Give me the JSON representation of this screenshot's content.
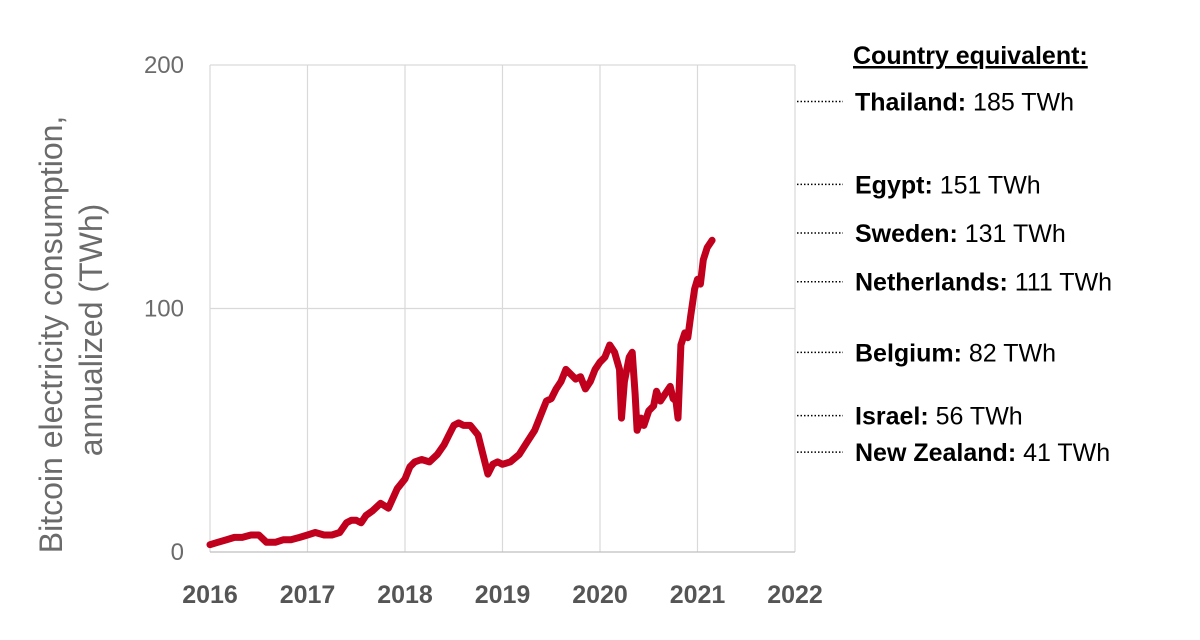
{
  "chart_data": {
    "type": "line",
    "title": "",
    "ylabel_lines": [
      "Bitcoin electricity consumption,",
      "annualized (TWh)"
    ],
    "xlabel": "",
    "x_ticks": [
      "2016",
      "2017",
      "2018",
      "2019",
      "2020",
      "2021",
      "2022"
    ],
    "y_ticks": [
      "0",
      "100",
      "200"
    ],
    "xlim": [
      2016,
      2022
    ],
    "ylim": [
      0,
      200
    ],
    "grid": true,
    "series": [
      {
        "name": "",
        "color": "#c0001c",
        "x": [
          2016.0,
          2016.08,
          2016.17,
          2016.25,
          2016.33,
          2016.42,
          2016.5,
          2016.58,
          2016.67,
          2016.75,
          2016.83,
          2016.92,
          2017.0,
          2017.08,
          2017.17,
          2017.25,
          2017.33,
          2017.4,
          2017.45,
          2017.5,
          2017.55,
          2017.6,
          2017.67,
          2017.75,
          2017.83,
          2017.92,
          2018.0,
          2018.05,
          2018.1,
          2018.17,
          2018.25,
          2018.33,
          2018.4,
          2018.45,
          2018.5,
          2018.55,
          2018.6,
          2018.67,
          2018.75,
          2018.8,
          2018.85,
          2018.9,
          2018.95,
          2019.0,
          2019.08,
          2019.17,
          2019.25,
          2019.33,
          2019.4,
          2019.45,
          2019.5,
          2019.55,
          2019.6,
          2019.65,
          2019.7,
          2019.75,
          2019.8,
          2019.85,
          2019.9,
          2019.95,
          2020.0,
          2020.05,
          2020.1,
          2020.15,
          2020.2,
          2020.22,
          2020.25,
          2020.3,
          2020.33,
          2020.36,
          2020.38,
          2020.42,
          2020.45,
          2020.5,
          2020.55,
          2020.58,
          2020.62,
          2020.67,
          2020.72,
          2020.75,
          2020.78,
          2020.8,
          2020.83,
          2020.87,
          2020.9,
          2020.93,
          2020.97,
          2021.0,
          2021.03,
          2021.06,
          2021.1,
          2021.15
        ],
        "y": [
          3,
          4,
          5,
          6,
          6,
          7,
          7,
          4,
          4,
          5,
          5,
          6,
          7,
          8,
          7,
          7,
          8,
          12,
          13,
          13,
          12,
          15,
          17,
          20,
          18,
          26,
          30,
          35,
          37,
          38,
          37,
          40,
          44,
          48,
          52,
          53,
          52,
          52,
          48,
          40,
          32,
          36,
          37,
          36,
          37,
          40,
          45,
          50,
          57,
          62,
          63,
          67,
          70,
          75,
          73,
          71,
          72,
          67,
          70,
          75,
          78,
          80,
          85,
          82,
          75,
          55,
          70,
          80,
          82,
          65,
          50,
          55,
          52,
          58,
          60,
          66,
          62,
          65,
          68,
          63,
          62,
          55,
          85,
          90,
          88,
          97,
          108,
          112,
          110,
          120,
          125,
          128
        ]
      }
    ],
    "country_title": "Country equivalent:",
    "countries": [
      {
        "name": "Thailand:",
        "value": "185 TWh",
        "twh": 185
      },
      {
        "name": "Egypt:",
        "value": "151 TWh",
        "twh": 151
      },
      {
        "name": "Sweden:",
        "value": "131 TWh",
        "twh": 131
      },
      {
        "name": "Netherlands:",
        "value": "111 TWh",
        "twh": 111
      },
      {
        "name": "Belgium:",
        "value": "82 TWh",
        "twh": 82
      },
      {
        "name": "Israel:",
        "value": "56 TWh",
        "twh": 56
      },
      {
        "name": "New Zealand:",
        "value": "41 TWh",
        "twh": 41
      }
    ]
  }
}
